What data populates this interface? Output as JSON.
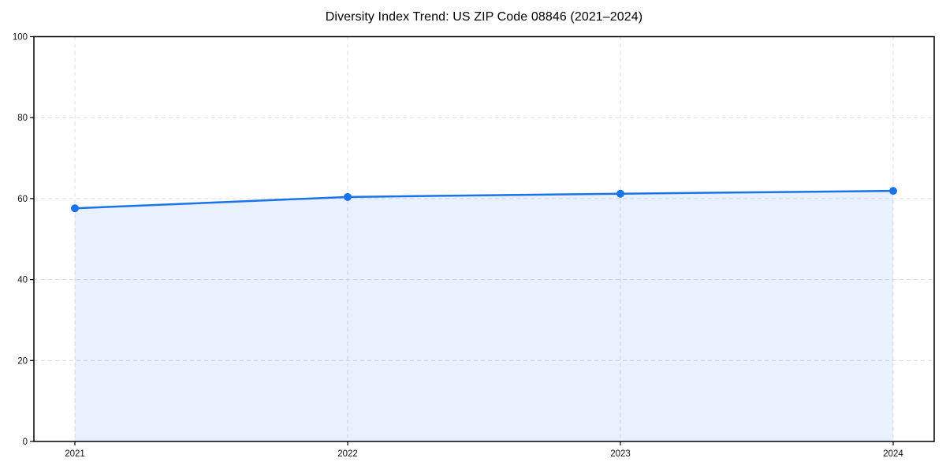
{
  "page": {
    "background_color": "#ffffff"
  },
  "chart_data": {
    "type": "line",
    "title": "Diversity Index Trend: US ZIP Code 08846 (2021–2024)",
    "x": [
      "2021",
      "2022",
      "2023",
      "2024"
    ],
    "series": [
      {
        "name": "Diversity Index",
        "values": [
          57.6,
          60.4,
          61.2,
          61.9
        ]
      }
    ],
    "xlabel": "",
    "ylabel": "",
    "ylim": [
      0,
      100
    ],
    "yticks": [
      0,
      20,
      40,
      60,
      80,
      100
    ],
    "grid": "on",
    "grid_style": "dashed",
    "legend_position": "none",
    "colors": {
      "line": "#1a73e8",
      "marker": "#1a73e8",
      "area_fill": "#1a73e8",
      "area_fill_opacity": 0.1,
      "grid": "#dcdcdc",
      "axis": "#000000",
      "tick_text": "#111111",
      "title_text": "#000000"
    }
  }
}
